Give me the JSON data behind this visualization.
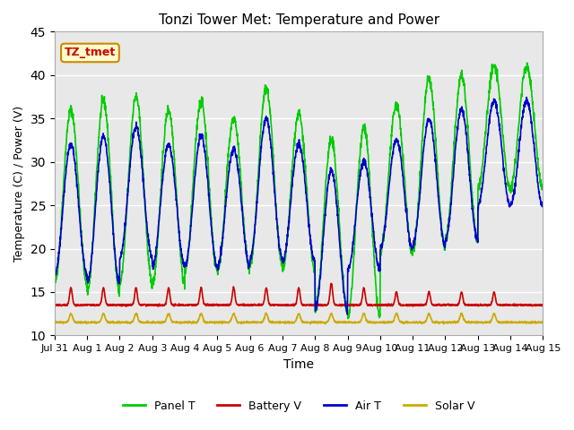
{
  "title": "Tonzi Tower Met: Temperature and Power",
  "xlabel": "Time",
  "ylabel": "Temperature (C) / Power (V)",
  "ylim": [
    10,
    45
  ],
  "yticks": [
    10,
    15,
    20,
    25,
    30,
    35,
    40,
    45
  ],
  "xlim_days": [
    0,
    15
  ],
  "xtick_labels": [
    "Jul 31",
    "Aug 1",
    "Aug 2",
    "Aug 3",
    "Aug 4",
    "Aug 5",
    "Aug 6",
    "Aug 7",
    "Aug 8",
    "Aug 9",
    "Aug 10",
    "Aug 11",
    "Aug 12",
    "Aug 13",
    "Aug 14",
    "Aug 15"
  ],
  "annotation_text": "TZ_tmet",
  "annotation_color": "#cc0000",
  "annotation_bg": "#ffffcc",
  "annotation_edge": "#cc8800",
  "colors": {
    "panel_t": "#00cc00",
    "battery_v": "#cc0000",
    "air_t": "#0000cc",
    "solar_v": "#ccaa00"
  },
  "legend_labels": [
    "Panel T",
    "Battery V",
    "Air T",
    "Solar V"
  ],
  "bg_plot": "#e8e8e8",
  "bg_figure": "#ffffff",
  "grid_color": "#ffffff",
  "linewidth": 1.2,
  "panel_t_peaks": [
    36,
    37,
    37.5,
    36,
    37,
    35,
    38.5,
    35.5,
    32.5,
    34,
    36.5,
    39.5,
    40,
    41
  ],
  "panel_t_troughs": [
    16,
    15,
    16,
    16,
    17.5,
    17.5,
    18,
    17.5,
    13,
    12,
    19.5,
    20,
    21,
    27
  ],
  "air_t_peaks": [
    32,
    33,
    34,
    32,
    33,
    31.5,
    35,
    32,
    29,
    30,
    32.5,
    35,
    36,
    37
  ],
  "air_t_troughs": [
    17,
    16,
    19,
    18,
    18,
    18,
    19,
    18.5,
    13,
    17.5,
    20,
    20.5,
    21,
    25
  ],
  "battery_v_base": 13.5,
  "battery_v_peaks": [
    15.5,
    15.5,
    15.5,
    15.5,
    15.5,
    15.5,
    15.5,
    15.5,
    16,
    15.5,
    15,
    15,
    15,
    15
  ],
  "solar_v_base": 11.5,
  "solar_v_peaks": [
    12.5,
    12.5,
    12.5,
    12.5,
    12.5,
    12.5,
    12.5,
    12.5,
    12.5,
    12.5,
    12.5,
    12.5,
    12.5,
    12.5
  ]
}
